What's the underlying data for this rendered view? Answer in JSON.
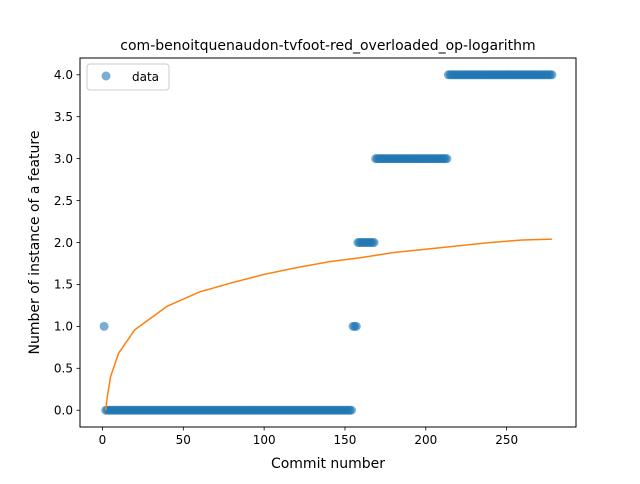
{
  "chart_data": {
    "type": "scatter",
    "title": "com-benoitquenaudon-tvfoot-red_overloaded_op-logarithm",
    "xlabel": "Commit number",
    "ylabel": "Number of instance of a feature",
    "xlim": [
      -13.9,
      292.9
    ],
    "ylim": [
      -0.2,
      4.2
    ],
    "xticks": [
      0,
      50,
      100,
      150,
      200,
      250
    ],
    "yticks": [
      0.0,
      0.5,
      1.0,
      1.5,
      2.0,
      2.5,
      3.0,
      3.5,
      4.0
    ],
    "grid": false,
    "legend": {
      "placement": "top-left",
      "entries": [
        "data"
      ]
    },
    "colors": {
      "data": "#1f77b4",
      "fit": "#ff7f0e"
    },
    "series": [
      {
        "name": "data",
        "kind": "points",
        "segments": [
          {
            "x_start": 1,
            "x_end": 1,
            "y": 1
          },
          {
            "x_start": 2,
            "x_end": 2,
            "y": 0
          },
          {
            "x_start": 3,
            "x_end": 154,
            "y": 0
          },
          {
            "x_start": 155,
            "x_end": 157,
            "y": 1
          },
          {
            "x_start": 158,
            "x_end": 168,
            "y": 2
          },
          {
            "x_start": 169,
            "x_end": 213,
            "y": 3
          },
          {
            "x_start": 214,
            "x_end": 278,
            "y": 4
          }
        ]
      },
      {
        "kind": "line",
        "model": "logarithmic",
        "x_range": [
          2,
          278
        ],
        "samples": [
          [
            2,
            0.0
          ],
          [
            3,
            0.16
          ],
          [
            5,
            0.4
          ],
          [
            10,
            0.68
          ],
          [
            20,
            0.96
          ],
          [
            40,
            1.24
          ],
          [
            60,
            1.41
          ],
          [
            80,
            1.52
          ],
          [
            100,
            1.62
          ],
          [
            120,
            1.7
          ],
          [
            140,
            1.77
          ],
          [
            160,
            1.82
          ],
          [
            180,
            1.88
          ],
          [
            200,
            1.92
          ],
          [
            220,
            1.96
          ],
          [
            240,
            2.0
          ],
          [
            260,
            2.03
          ],
          [
            278,
            2.04
          ]
        ]
      }
    ]
  }
}
